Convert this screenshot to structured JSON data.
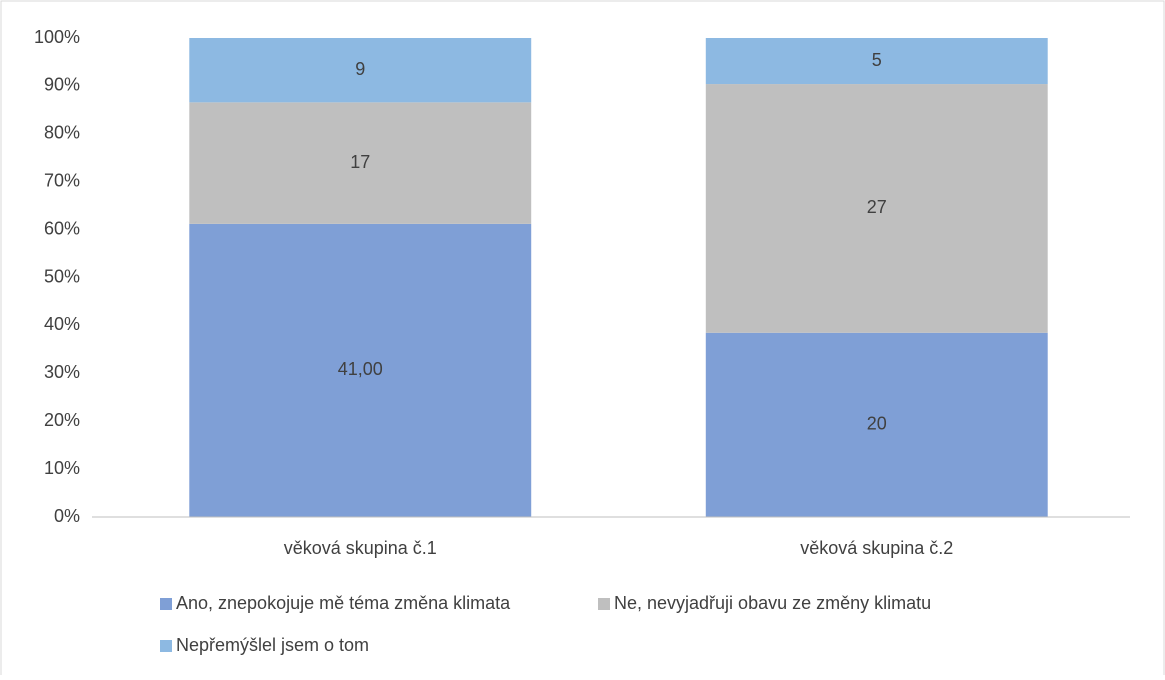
{
  "chart_data": {
    "type": "stacked_percent_bar",
    "categories": [
      "věková skupina č.1",
      "věková skupina č.2"
    ],
    "series": [
      {
        "name": "Ano, znepokojuje mě téma změna klimata",
        "color": "#7f9fd6",
        "values": [
          41,
          20
        ],
        "value_labels": [
          "41,00",
          "20"
        ]
      },
      {
        "name": "Ne, nevyjadřuji obavu ze změny klimatu",
        "color": "#bfbfbf",
        "values": [
          17,
          27
        ]
      },
      {
        "name": "Nepřemýšlel jsem o tom",
        "color": "#8db9e2",
        "values": [
          9,
          5
        ]
      }
    ],
    "ylim": [
      0,
      100
    ],
    "yticks": [
      {
        "value": 0,
        "label": "0%"
      },
      {
        "value": 10,
        "label": "10%"
      },
      {
        "value": 20,
        "label": "20%"
      },
      {
        "value": 30,
        "label": "30%"
      },
      {
        "value": 40,
        "label": "40%"
      },
      {
        "value": 50,
        "label": "50%"
      },
      {
        "value": 60,
        "label": "60%"
      },
      {
        "value": 70,
        "label": "70%"
      },
      {
        "value": 80,
        "label": "80%"
      },
      {
        "value": 90,
        "label": "90%"
      },
      {
        "value": 100,
        "label": "100%"
      }
    ],
    "grid": false,
    "legend": "bottom"
  }
}
